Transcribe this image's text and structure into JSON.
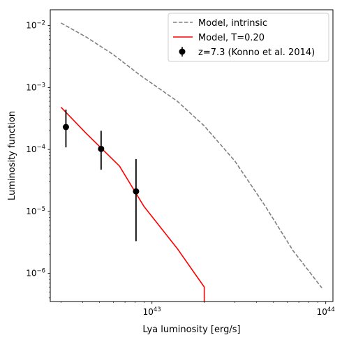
{
  "chart_data": {
    "type": "line",
    "xlabel": "Lya luminosity [erg/s]",
    "ylabel": "Luminosity function",
    "xscale": "log",
    "yscale": "log",
    "xlim": [
      2.6e+42,
      1.1e+44
    ],
    "ylim": [
      3.5e-07,
      0.018
    ],
    "grid": false,
    "legend_position": "top-right",
    "x_ticks": [
      {
        "value": 1e+43,
        "base": "10",
        "exp": "43"
      },
      {
        "value": 1e+44,
        "base": "10",
        "exp": "44"
      }
    ],
    "y_ticks": [
      {
        "value": 1e-06,
        "base": "10",
        "exp": "−6"
      },
      {
        "value": 1e-05,
        "base": "10",
        "exp": "−5"
      },
      {
        "value": 0.0001,
        "base": "10",
        "exp": "−4"
      },
      {
        "value": 0.001,
        "base": "10",
        "exp": "−3"
      },
      {
        "value": 0.01,
        "base": "10",
        "exp": "−2"
      }
    ],
    "series": [
      {
        "name": "Model, intrinsic",
        "style": "dashed",
        "color": "#808080",
        "points": [
          [
            3e+42,
            0.011
          ],
          [
            4.2e+42,
            0.0065
          ],
          [
            6e+42,
            0.0034
          ],
          [
            8.5e+42,
            0.0016
          ],
          [
            1.4e+43,
            0.0006
          ],
          [
            2e+43,
            0.00024
          ],
          [
            3e+43,
            6.5e-05
          ],
          [
            4.5e+43,
            1.2e-05
          ],
          [
            6.5e+43,
            2.3e-06
          ],
          [
            9.5e+43,
            5.8e-07
          ]
        ]
      },
      {
        "name": "Model, T=0.20",
        "style": "solid",
        "color": "#ff0000",
        "points": [
          [
            3e+42,
            0.00048
          ],
          [
            4.2e+42,
            0.00018
          ],
          [
            6.5e+42,
            5.4e-05
          ],
          [
            9e+42,
            1.2e-05
          ],
          [
            1.4e+43,
            2.5e-06
          ],
          [
            2e+43,
            6e-07
          ],
          [
            2e+43,
            3.5e-07
          ]
        ]
      },
      {
        "name": "z=7.3 (Konno et al. 2014)",
        "style": "errorbar",
        "color": "#000000",
        "points": [
          {
            "x": 3.2e+42,
            "y": 0.00023,
            "ylow": 0.000108,
            "yhigh": 0.00044
          },
          {
            "x": 5.1e+42,
            "y": 0.000102,
            "ylow": 4.7e-05,
            "yhigh": 0.0002
          },
          {
            "x": 8.1e+42,
            "y": 2.1e-05,
            "ylow": 3.3e-06,
            "yhigh": 7e-05
          }
        ]
      }
    ]
  }
}
